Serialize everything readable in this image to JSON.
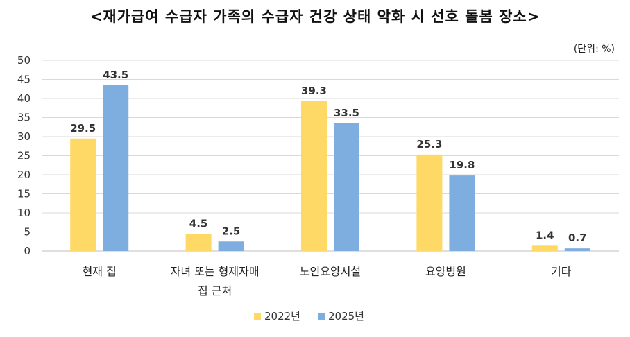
{
  "title": "<재가급여 수급자 가족의 수급자 건강 상태 악화 시 선호 돌봄 장소>",
  "unit": "(단위: %)",
  "chart_data": {
    "type": "bar",
    "title": "<재가급여 수급자 가족의 수급자 건강 상태 악화 시 선호 돌봄 장소>",
    "xlabel": "",
    "ylabel": "",
    "ylim": [
      0,
      50
    ],
    "yticks": [
      0,
      5,
      10,
      15,
      20,
      25,
      30,
      35,
      40,
      45,
      50
    ],
    "grid": true,
    "legend": "bottom",
    "categories": [
      [
        "현재 집"
      ],
      [
        "자녀 또는 형제자매",
        "집 근처"
      ],
      [
        "노인요양시설"
      ],
      [
        "요양병원"
      ],
      [
        "기타"
      ]
    ],
    "series": [
      {
        "name": "2022년",
        "color": "#FFD966",
        "values": [
          29.5,
          4.5,
          39.3,
          25.3,
          1.4
        ]
      },
      {
        "name": "2025년",
        "color": "#7EADDF",
        "values": [
          43.5,
          2.5,
          33.5,
          19.8,
          0.7
        ]
      }
    ]
  }
}
